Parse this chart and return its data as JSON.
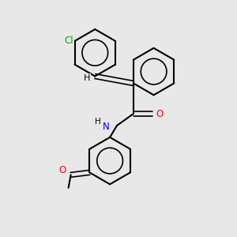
{
  "background_color": "#e8e8e8",
  "bond_color": "#000000",
  "atom_colors": {
    "C": "#000000",
    "N": "#0000ff",
    "O": "#ff0000",
    "Cl": "#00aa00",
    "H": "#000000"
  },
  "figsize": [
    3.0,
    3.0
  ],
  "dpi": 100
}
